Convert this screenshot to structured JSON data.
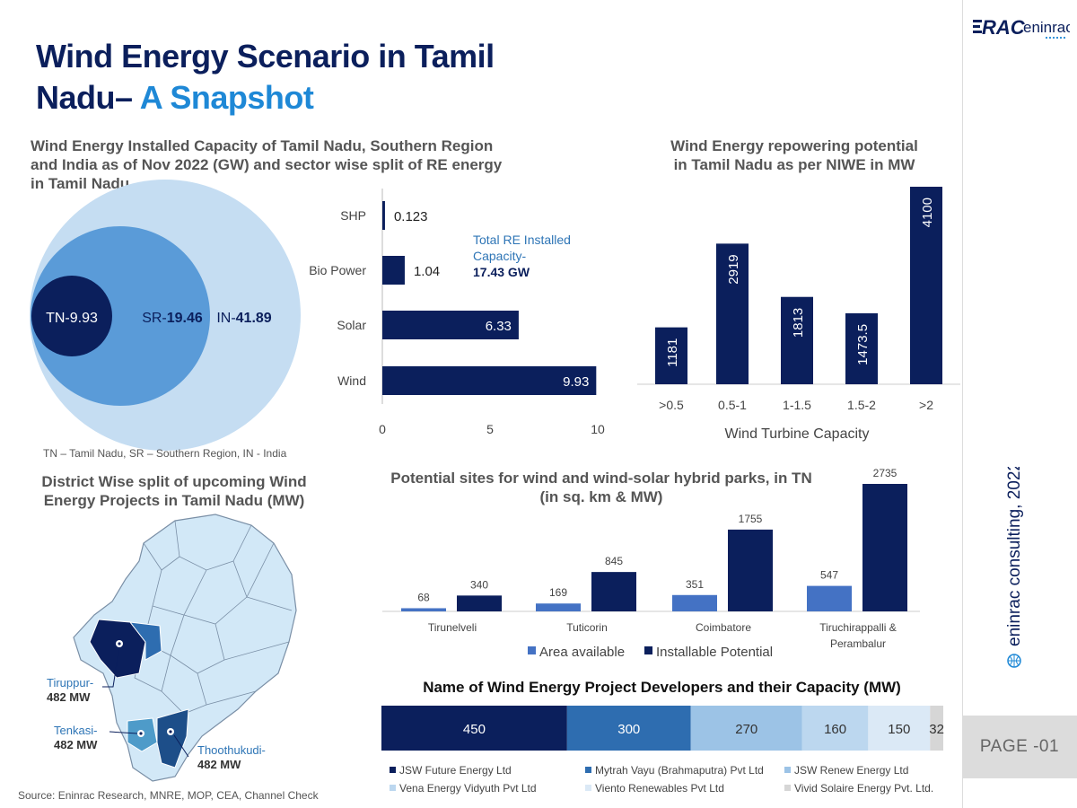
{
  "header": {
    "title_line1": "Wind Energy Scenario in Tamil",
    "title_line2_main": "Nadu– ",
    "title_line2_highlight": "A Snapshot"
  },
  "brand": {
    "logo_text_left": "RAC",
    "logo_text_right": "eninrac",
    "vertical_text": "eninrac consulting, 2022",
    "page_label": "PAGE -01",
    "primary_color": "#0b1f5c",
    "accent_color": "#1e88d6"
  },
  "circles_section": {
    "title_line1": "Wind Energy Installed Capacity of Tamil Nadu, Southern Region",
    "title_line2": "and India as of Nov 2022 (GW) and sector wise split of  RE energy",
    "title_line3": "in Tamil Nadu",
    "tn_label": "TN-9.93",
    "sr_prefix": "SR-",
    "sr_value": "19.46",
    "in_prefix": "IN-",
    "in_value": "41.89",
    "legend_note": "TN – Tamil Nadu, SR – Southern Region, IN - India"
  },
  "re_split_annotation": {
    "line1": "Total RE Installed",
    "line2": "Capacity-",
    "line3": "17.43 GW"
  },
  "map_section": {
    "title_line1": "District Wise split of upcoming Wind",
    "title_line2": "Energy Projects in Tamil Nadu (MW)",
    "labels": [
      {
        "name": "Tiruppur-",
        "value": "482 MW"
      },
      {
        "name": "Tenkasi-",
        "value": "482 MW"
      },
      {
        "name": "Thoothukudi-",
        "value": "482 MW"
      }
    ]
  },
  "repower_section": {
    "title_line1": "Wind Energy repowering potential",
    "title_line2": "in Tamil Nadu as per NIWE in MW"
  },
  "sites_section": {
    "title_line1": "Potential sites for wind and wind-solar hybrid parks, in TN",
    "title_line2": "(in sq. km & MW)"
  },
  "developers_section": {
    "title": "Name of Wind Energy Project Developers and their Capacity (MW)"
  },
  "source_note": "Source: Eninrac Research, MNRE, MOP, CEA, Channel Check",
  "chart_data": [
    {
      "type": "bar",
      "orientation": "horizontal",
      "categories": [
        "SHP",
        "Bio Power",
        "Solar",
        "Wind"
      ],
      "values": [
        0.123,
        1.04,
        6.33,
        9.93
      ],
      "value_labels": [
        "0.123",
        "1.04",
        "6.33",
        "9.93"
      ],
      "xlim": [
        0,
        10
      ],
      "xticks": [
        "0",
        "5",
        "10"
      ],
      "color": "#0b1f5c"
    },
    {
      "type": "bar",
      "categories": [
        ">0.5",
        "0.5-1",
        "1-1.5",
        "1.5-2",
        ">2"
      ],
      "values": [
        1181,
        2919,
        1813,
        1473.5,
        4100
      ],
      "value_labels": [
        "1181",
        "2919",
        "1813",
        "1473.5",
        "4100"
      ],
      "xlabel": "Wind Turbine Capacity",
      "ylim": [
        0,
        4100
      ],
      "color": "#0b1f5c"
    },
    {
      "type": "bar",
      "categories": [
        "Tirunelveli",
        "Tuticorin",
        "Coimbatore",
        "Tiruchirappalli &\nPerambalur"
      ],
      "series": [
        {
          "name": "Area available",
          "values": [
            68,
            169,
            351,
            547
          ],
          "color": "#4472c4"
        },
        {
          "name": "Installable Potential",
          "values": [
            340,
            845,
            1755,
            2735
          ],
          "color": "#0b1f5c"
        }
      ],
      "ylim": [
        0,
        2735
      ],
      "legend": "bottom"
    },
    {
      "type": "bar",
      "orientation": "stacked-horizontal",
      "series": [
        {
          "name": "JSW Future Energy Ltd",
          "value": 450,
          "color": "#0b1f5c"
        },
        {
          "name": "Mytrah Vayu (Brahmaputra) Pvt Ltd",
          "value": 300,
          "color": "#2e6db0"
        },
        {
          "name": "JSW Renew Energy Ltd",
          "value": 270,
          "color": "#9cc3e6"
        },
        {
          "name": "Vena Energy Vidyuth Pvt Ltd",
          "value": 160,
          "color": "#bcd7ef"
        },
        {
          "name": "Viento Renewables Pvt Ltd",
          "value": 150,
          "color": "#dbe9f6"
        },
        {
          "name": "Vivid Solaire Energy Pvt. Ltd.",
          "value": 32,
          "color": "#d6d6d6"
        }
      ],
      "legend": "bottom"
    }
  ]
}
